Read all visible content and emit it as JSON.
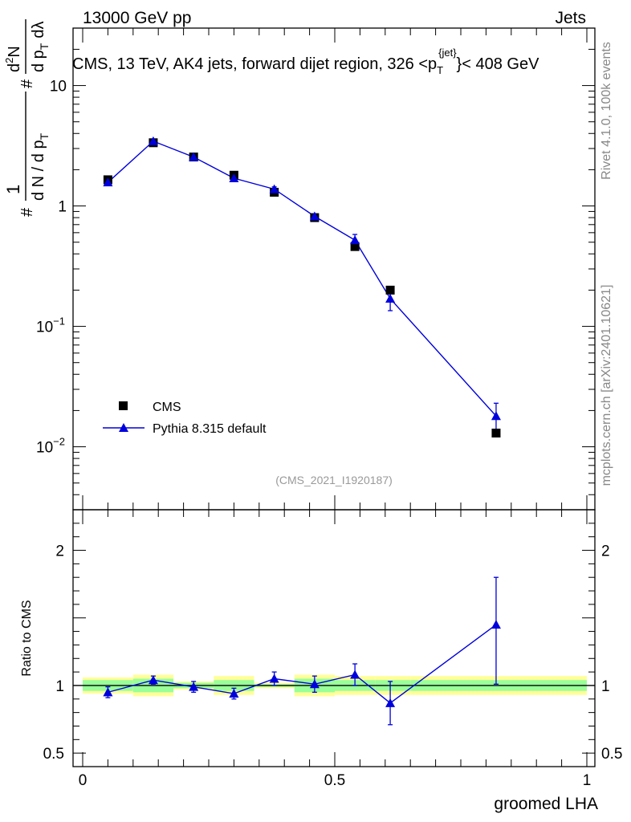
{
  "header": {
    "left": "13000 GeV pp",
    "right": "Jets"
  },
  "side_labels": {
    "rivet": "Rivet 4.1.0,  100k events",
    "mcplots": "mcplots.cern.ch [arXiv:2401.10621]"
  },
  "chart_data": {
    "type": "scatter",
    "title_prefix": "CMS, 13 TeV, AK4 jets, forward dijet region, 326 <p",
    "title_sup": "{jet}",
    "title_sub": "T",
    "title_suffix": "}< 408 GeV",
    "analysis_id": "(CMS_2021_I1920187)",
    "xlabel": "groomed LHA",
    "ylabel_lower": "Ratio to CMS",
    "ylabel_upper_parts": [
      "#",
      "1",
      "d N / d p",
      "T",
      "#",
      "d p",
      "T",
      "d",
      "2",
      "N",
      "d",
      "λ"
    ],
    "xlim": [
      0,
      1
    ],
    "ylim_upper": [
      0.003,
      30
    ],
    "ylim_lower": [
      0.4,
      2.3
    ],
    "x_ticks": [
      "0",
      "0.5",
      "1"
    ],
    "upper_tick_labels": [
      {
        "value": 10,
        "base": "10",
        "exp": ""
      },
      {
        "value": 1,
        "base": "1",
        "exp": ""
      },
      {
        "value": 0.1,
        "base": "10",
        "exp": "−1"
      },
      {
        "value": 0.01,
        "base": "10",
        "exp": "−2"
      }
    ],
    "lower_tick_labels": [
      {
        "value": 2,
        "label": "2"
      },
      {
        "value": 1,
        "label": "1"
      },
      {
        "value": 0.5,
        "label": "0.5"
      }
    ],
    "legend": [
      "CMS",
      "Pythia 8.315 default"
    ],
    "bins": [
      0.0,
      0.1,
      0.18,
      0.26,
      0.34,
      0.42,
      0.5,
      0.58,
      0.65,
      1.0
    ],
    "x": [
      0.05,
      0.14,
      0.22,
      0.3,
      0.38,
      0.46,
      0.54,
      0.61,
      0.82
    ],
    "series": [
      {
        "name": "CMS",
        "values": [
          1.65,
          3.35,
          2.55,
          1.8,
          1.3,
          0.8,
          0.46,
          0.2,
          0.013
        ]
      },
      {
        "name": "Pythia 8.315 default",
        "values": [
          1.57,
          3.45,
          2.55,
          1.7,
          1.38,
          0.82,
          0.52,
          0.17,
          0.018
        ],
        "err_low": [
          0.06,
          0.12,
          0.08,
          0.07,
          0.06,
          0.04,
          0.06,
          0.035,
          0.004
        ],
        "err_high": [
          0.06,
          0.12,
          0.08,
          0.07,
          0.06,
          0.04,
          0.06,
          0.035,
          0.005
        ]
      }
    ],
    "ratio": {
      "values": [
        0.95,
        1.04,
        0.99,
        0.94,
        1.05,
        1.01,
        1.08,
        0.87,
        1.45
      ],
      "err_low": [
        0.04,
        0.03,
        0.04,
        0.04,
        0.05,
        0.06,
        0.08,
        0.16,
        0.44
      ],
      "err_high": [
        0.04,
        0.03,
        0.04,
        0.04,
        0.05,
        0.06,
        0.08,
        0.16,
        0.35
      ]
    },
    "bands": {
      "green_half": [
        0.04,
        0.05,
        0.02,
        0.04,
        0.01,
        0.05,
        0.04,
        0.04,
        0.04
      ],
      "yellow_half": [
        0.06,
        0.08,
        0.03,
        0.07,
        0.02,
        0.08,
        0.07,
        0.07,
        0.07
      ]
    },
    "colors": {
      "data": "#000000",
      "mc": "#0000dd",
      "band_inner": "#99ff99",
      "band_outer": "#ffff99",
      "axis": "#000000",
      "analysis_id": "#999999",
      "side_text": "#888888"
    }
  }
}
